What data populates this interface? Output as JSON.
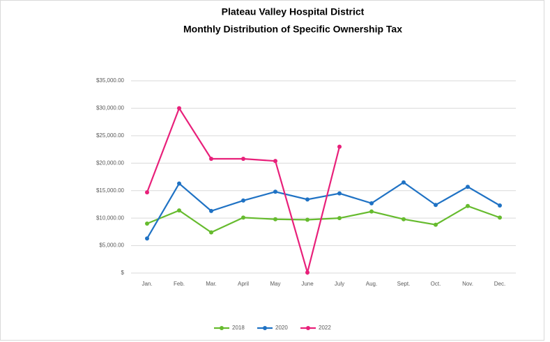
{
  "chart_data": {
    "type": "line",
    "title": "Plateau Valley Hospital District",
    "subtitle": "Monthly Distribution of Specific Ownership Tax",
    "categories": [
      "Jan.",
      "Feb.",
      "Mar.",
      "April",
      "May",
      "June",
      "July",
      "Aug.",
      "Sept.",
      "Oct.",
      "Nov.",
      "Dec."
    ],
    "series": [
      {
        "name": "2018",
        "color": "#66bb2e",
        "values": [
          9000,
          11400,
          7400,
          10100,
          9800,
          9700,
          10000,
          11200,
          9800,
          8800,
          12200,
          10100
        ]
      },
      {
        "name": "2020",
        "color": "#1f72c4",
        "values": [
          6300,
          16300,
          11300,
          13200,
          14800,
          13400,
          14500,
          12700,
          16500,
          12400,
          15700,
          12300
        ]
      },
      {
        "name": "2022",
        "color": "#e8207a",
        "values": [
          14700,
          30000,
          20800,
          20800,
          20400,
          100,
          23000,
          null,
          null,
          null,
          null,
          null
        ]
      }
    ],
    "ylim": [
      0,
      35000
    ],
    "yticks": [
      {
        "value": 0,
        "label": "$"
      },
      {
        "value": 5000,
        "label": "$5,000.00"
      },
      {
        "value": 10000,
        "label": "$10,000.00"
      },
      {
        "value": 15000,
        "label": "$15,000.00"
      },
      {
        "value": 20000,
        "label": "$20,000.00"
      },
      {
        "value": 25000,
        "label": "$25,000.00"
      },
      {
        "value": 30000,
        "label": "$30,000.00"
      },
      {
        "value": 35000,
        "label": "$35,000.00"
      }
    ],
    "grid": true,
    "legend": "bottom"
  }
}
